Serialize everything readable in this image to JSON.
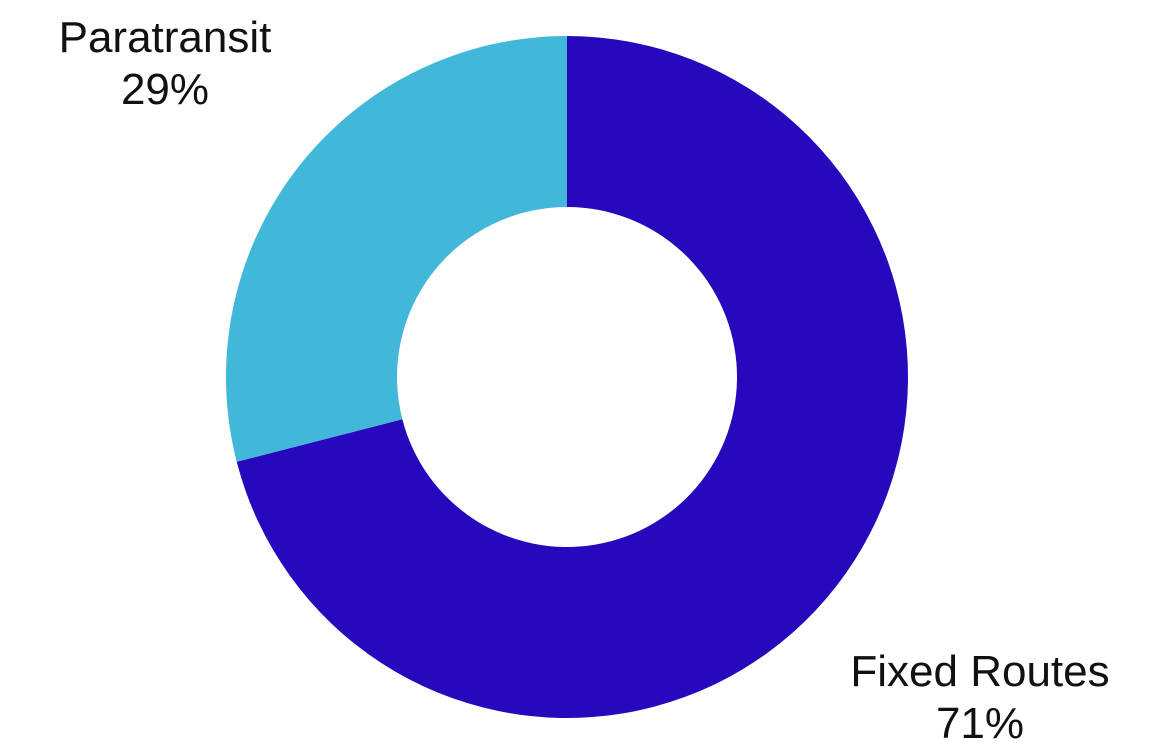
{
  "chart_data": {
    "type": "pie",
    "donut": true,
    "slices": [
      {
        "label": "Fixed Routes",
        "value": 71,
        "value_label": "71%",
        "color": "#2708bd"
      },
      {
        "label": "Paratransit",
        "value": 29,
        "value_label": "29%",
        "color": "#41b7d9"
      }
    ],
    "start_angle_deg": 0,
    "direction": "clockwise",
    "legend": "none"
  }
}
